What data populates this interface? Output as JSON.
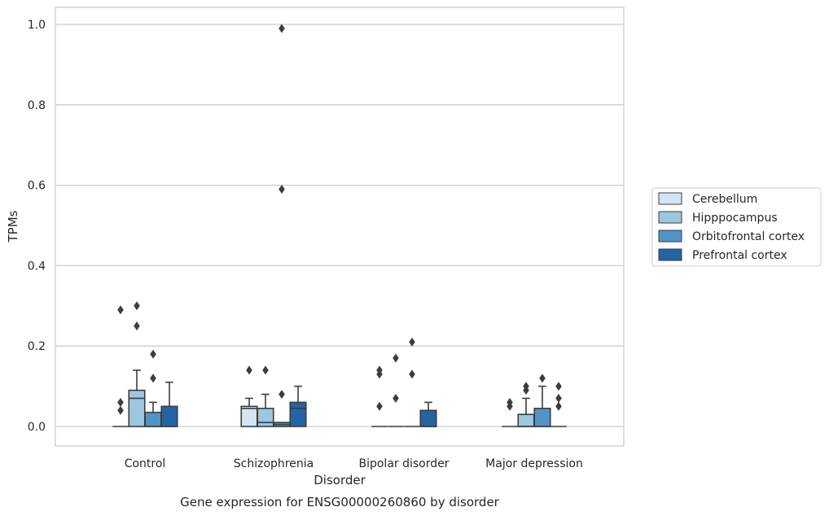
{
  "chart_data": {
    "type": "box",
    "title": "",
    "caption": "Gene expression for ENSG00000260860 by disorder",
    "xlabel": "Disorder",
    "ylabel": "TPMs",
    "ylim": [
      -0.05,
      1.04
    ],
    "yticks": [
      0.0,
      0.2,
      0.4,
      0.6,
      0.8,
      1.0
    ],
    "ytick_labels": [
      "0.0",
      "0.2",
      "0.4",
      "0.6",
      "0.8",
      "1.0"
    ],
    "grid": "horizontal",
    "legend_position": "right",
    "categories": [
      "Control",
      "Schizophrenia",
      "Bipolar disorder",
      "Major depression"
    ],
    "series": [
      {
        "name": "Cerebellum",
        "color": "#d4e4f3",
        "boxes": [
          {
            "q1": 0,
            "median": 0,
            "q3": 0,
            "whislo": 0,
            "whishi": 0,
            "fliers": [
              0.04,
              0.06,
              0.29
            ]
          },
          {
            "q1": 0,
            "median": 0.045,
            "q3": 0.05,
            "whislo": 0,
            "whishi": 0.07,
            "fliers": [
              0.14
            ]
          },
          {
            "q1": 0,
            "median": 0,
            "q3": 0,
            "whislo": 0,
            "whishi": 0,
            "fliers": [
              0.05,
              0.13,
              0.14
            ]
          },
          {
            "q1": 0,
            "median": 0,
            "q3": 0,
            "whislo": 0,
            "whishi": 0,
            "fliers": [
              0.05,
              0.06
            ]
          }
        ]
      },
      {
        "name": "Hipppocampus",
        "color": "#9dc6df",
        "boxes": [
          {
            "q1": 0,
            "median": 0.07,
            "q3": 0.09,
            "whislo": 0,
            "whishi": 0.14,
            "fliers": [
              0.25,
              0.3
            ]
          },
          {
            "q1": 0,
            "median": 0.01,
            "q3": 0.045,
            "whislo": 0,
            "whishi": 0.08,
            "fliers": [
              0.14
            ]
          },
          {
            "q1": 0,
            "median": 0,
            "q3": 0,
            "whislo": 0,
            "whishi": 0,
            "fliers": [
              0.07,
              0.17
            ]
          },
          {
            "q1": 0,
            "median": 0,
            "q3": 0.03,
            "whislo": 0,
            "whishi": 0.07,
            "fliers": [
              0.09,
              0.1
            ]
          }
        ]
      },
      {
        "name": "Orbitofrontal cortex",
        "color": "#5294c5",
        "boxes": [
          {
            "q1": 0,
            "median": 0,
            "q3": 0.035,
            "whislo": 0,
            "whishi": 0.06,
            "fliers": [
              0.12,
              0.18
            ]
          },
          {
            "q1": 0,
            "median": 0.005,
            "q3": 0.01,
            "whislo": 0,
            "whishi": 0.01,
            "fliers": [
              0.08,
              0.59,
              0.99
            ]
          },
          {
            "q1": 0,
            "median": 0,
            "q3": 0,
            "whislo": 0,
            "whishi": 0,
            "fliers": [
              0.13,
              0.21
            ]
          },
          {
            "q1": 0,
            "median": 0,
            "q3": 0.045,
            "whislo": 0,
            "whishi": 0.1,
            "fliers": [
              0.12
            ]
          }
        ]
      },
      {
        "name": "Prefrontal cortex",
        "color": "#2464a4",
        "boxes": [
          {
            "q1": 0,
            "median": 0,
            "q3": 0.05,
            "whislo": 0,
            "whishi": 0.11,
            "fliers": []
          },
          {
            "q1": 0,
            "median": 0.045,
            "q3": 0.06,
            "whislo": 0,
            "whishi": 0.1,
            "fliers": []
          },
          {
            "q1": 0,
            "median": 0,
            "q3": 0.04,
            "whislo": 0,
            "whishi": 0.06,
            "fliers": []
          },
          {
            "q1": 0,
            "median": 0,
            "q3": 0,
            "whislo": 0,
            "whishi": 0,
            "fliers": [
              0.05,
              0.07,
              0.1
            ]
          }
        ]
      }
    ]
  }
}
